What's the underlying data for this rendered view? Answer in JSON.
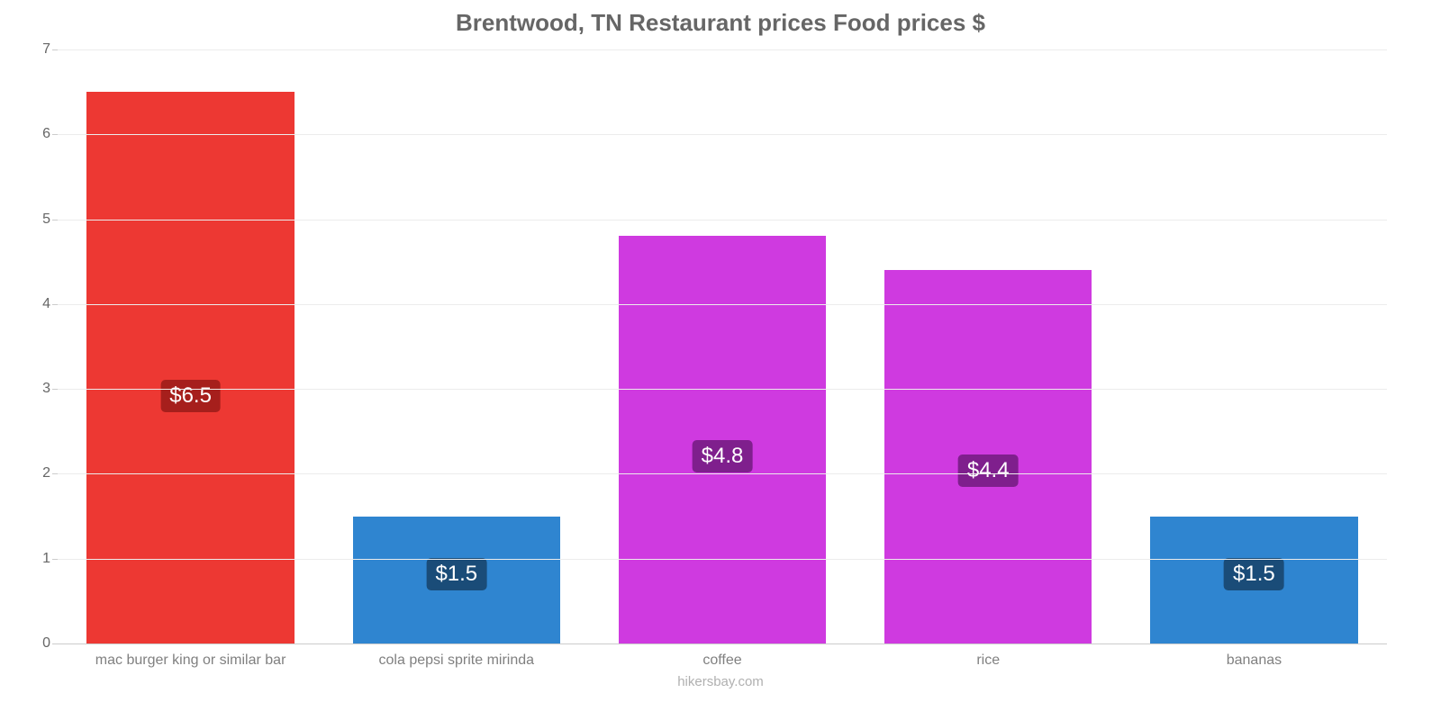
{
  "chart": {
    "type": "bar",
    "title": "Brentwood, TN Restaurant prices Food prices $",
    "title_color": "#666666",
    "title_fontsize": 26,
    "background_color": "#ffffff",
    "grid_color": "#ececec",
    "baseline_color": "#cccccc",
    "axis_label_color": "#666666",
    "x_label_color": "#808080",
    "footer_text": "hikersbay.com",
    "footer_color": "#b0b0b0",
    "ylim": [
      0,
      7
    ],
    "yticks": [
      0,
      1,
      2,
      3,
      4,
      5,
      6,
      7
    ],
    "bar_width_pct": 78,
    "label_fontsize": 16,
    "value_fontsize": 24,
    "bars": [
      {
        "category": "mac burger king or similar bar",
        "value": 6.5,
        "display": "$6.5",
        "color": "#ed3833",
        "badge_bg": "#a61f1c"
      },
      {
        "category": "cola pepsi sprite mirinda",
        "value": 1.5,
        "display": "$1.5",
        "color": "#2f85d0",
        "badge_bg": "#1a4c78"
      },
      {
        "category": "coffee",
        "value": 4.8,
        "display": "$4.8",
        "color": "#cf3ae0",
        "badge_bg": "#7f1f8d"
      },
      {
        "category": "rice",
        "value": 4.4,
        "display": "$4.4",
        "color": "#cf3ae0",
        "badge_bg": "#7f1f8d"
      },
      {
        "category": "bananas",
        "value": 1.5,
        "display": "$1.5",
        "color": "#2f85d0",
        "badge_bg": "#1a4c78"
      }
    ]
  }
}
